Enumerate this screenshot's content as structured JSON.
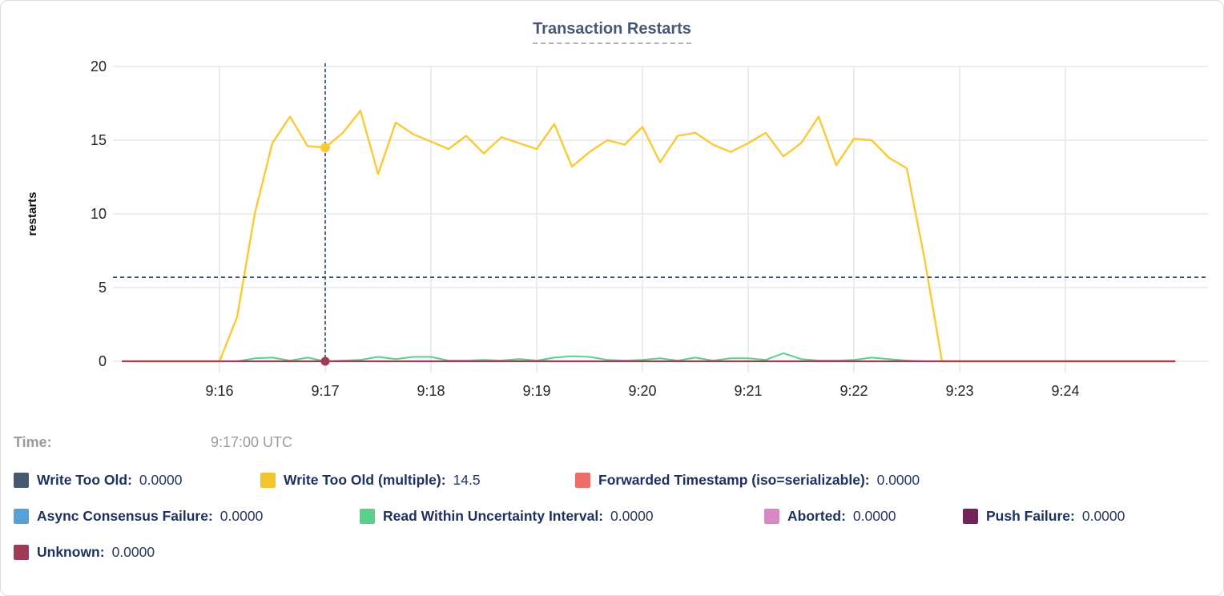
{
  "title": "Transaction Restarts",
  "tooltip": {
    "time_label": "Time:",
    "time_value": "9:17:00 UTC"
  },
  "legend_rows": [
    [
      {
        "label": "Write Too Old:",
        "value": "0.0000",
        "color": "#475872"
      },
      {
        "label": "Write Too Old (multiple):",
        "value": "14.5",
        "color": "#F4C32B"
      },
      {
        "label": "Forwarded Timestamp (iso=serializable):",
        "value": "0.0000",
        "color": "#EC6E67"
      }
    ],
    [
      {
        "label": "Async Consensus Failure:",
        "value": "0.0000",
        "color": "#58A1D8"
      },
      {
        "label": "Read Within Uncertainty Interval:",
        "value": "0.0000",
        "color": "#5AD18B"
      },
      {
        "label": "Aborted:",
        "value": "0.0000",
        "color": "#D688C7"
      },
      {
        "label": "Push Failure:",
        "value": "0.0000",
        "color": "#702459"
      }
    ],
    [
      {
        "label": "Unknown:",
        "value": "0.0000",
        "color": "#A03B55"
      }
    ]
  ],
  "chart_data": {
    "type": "line",
    "title": "Transaction Restarts",
    "xlabel": "",
    "ylabel": "restarts",
    "ylim": [
      0,
      20
    ],
    "y_ticks": [
      0,
      5,
      10,
      15,
      20
    ],
    "grid": true,
    "legend_position": "below",
    "x_unit": "seconds after 9:15:00 UTC",
    "x_range": [
      5,
      602
    ],
    "x_ticks": [
      {
        "label": "9:16",
        "t": 60
      },
      {
        "label": "9:17",
        "t": 120
      },
      {
        "label": "9:18",
        "t": 180
      },
      {
        "label": "9:19",
        "t": 240
      },
      {
        "label": "9:20",
        "t": 300
      },
      {
        "label": "9:21",
        "t": 360
      },
      {
        "label": "9:22",
        "t": 420
      },
      {
        "label": "9:23",
        "t": 480
      },
      {
        "label": "9:24",
        "t": 540
      }
    ],
    "series": [
      {
        "name": "Write Too Old",
        "color": "#475872",
        "width": 1.6,
        "data": [
          [
            5,
            0
          ],
          [
            602,
            0
          ]
        ]
      },
      {
        "name": "Async Consensus Failure",
        "color": "#58A1D8",
        "width": 1.6,
        "data": [
          [
            5,
            0
          ],
          [
            602,
            0
          ]
        ]
      },
      {
        "name": "Aborted",
        "color": "#D688C7",
        "width": 1.6,
        "data": [
          [
            5,
            0
          ],
          [
            602,
            0
          ]
        ]
      },
      {
        "name": "Push Failure",
        "color": "#702459",
        "width": 1.6,
        "data": [
          [
            5,
            0
          ],
          [
            602,
            0
          ]
        ]
      },
      {
        "name": "Forwarded Timestamp (iso=serializable)",
        "color": "#EC6E67",
        "width": 2,
        "data": [
          [
            5,
            0
          ],
          [
            210,
            0
          ],
          [
            220,
            0.05
          ],
          [
            230,
            0.15
          ],
          [
            240,
            0.05
          ],
          [
            250,
            0
          ],
          [
            602,
            0
          ]
        ]
      },
      {
        "name": "Read Within Uncertainty Interval",
        "color": "#5AD18B",
        "width": 2,
        "data": [
          [
            10,
            0
          ],
          [
            70,
            0
          ],
          [
            80,
            0.2
          ],
          [
            90,
            0.25
          ],
          [
            100,
            0.05
          ],
          [
            110,
            0.25
          ],
          [
            120,
            0
          ],
          [
            130,
            0.05
          ],
          [
            140,
            0.1
          ],
          [
            150,
            0.3
          ],
          [
            160,
            0.15
          ],
          [
            170,
            0.3
          ],
          [
            180,
            0.3
          ],
          [
            190,
            0.05
          ],
          [
            200,
            0.05
          ],
          [
            210,
            0.1
          ],
          [
            220,
            0.05
          ],
          [
            230,
            0.15
          ],
          [
            240,
            0.05
          ],
          [
            250,
            0.25
          ],
          [
            260,
            0.35
          ],
          [
            270,
            0.3
          ],
          [
            280,
            0.1
          ],
          [
            290,
            0.05
          ],
          [
            300,
            0.1
          ],
          [
            310,
            0.2
          ],
          [
            320,
            0.05
          ],
          [
            330,
            0.25
          ],
          [
            340,
            0.05
          ],
          [
            350,
            0.2
          ],
          [
            360,
            0.2
          ],
          [
            370,
            0.1
          ],
          [
            380,
            0.55
          ],
          [
            390,
            0.15
          ],
          [
            400,
            0.05
          ],
          [
            410,
            0.05
          ],
          [
            420,
            0.1
          ],
          [
            430,
            0.25
          ],
          [
            440,
            0.15
          ],
          [
            450,
            0.05
          ],
          [
            460,
            0
          ],
          [
            602,
            0
          ]
        ]
      },
      {
        "name": "Write Too Old (multiple)",
        "color": "#FBC935",
        "width": 2.4,
        "data": [
          [
            10,
            0
          ],
          [
            60,
            0
          ],
          [
            70,
            3
          ],
          [
            80,
            10
          ],
          [
            90,
            14.8
          ],
          [
            100,
            16.6
          ],
          [
            110,
            14.6
          ],
          [
            120,
            14.5
          ],
          [
            130,
            15.5
          ],
          [
            140,
            17
          ],
          [
            150,
            12.7
          ],
          [
            160,
            16.2
          ],
          [
            170,
            15.4
          ],
          [
            180,
            14.9
          ],
          [
            190,
            14.4
          ],
          [
            200,
            15.3
          ],
          [
            210,
            14.1
          ],
          [
            220,
            15.2
          ],
          [
            230,
            14.8
          ],
          [
            240,
            14.4
          ],
          [
            250,
            16.1
          ],
          [
            260,
            13.2
          ],
          [
            270,
            14.2
          ],
          [
            280,
            15
          ],
          [
            290,
            14.7
          ],
          [
            300,
            15.9
          ],
          [
            310,
            13.5
          ],
          [
            320,
            15.3
          ],
          [
            330,
            15.5
          ],
          [
            340,
            14.7
          ],
          [
            350,
            14.2
          ],
          [
            360,
            14.8
          ],
          [
            370,
            15.5
          ],
          [
            380,
            13.9
          ],
          [
            390,
            14.8
          ],
          [
            400,
            16.6
          ],
          [
            410,
            13.3
          ],
          [
            420,
            15.1
          ],
          [
            430,
            15
          ],
          [
            440,
            13.8
          ],
          [
            450,
            13.1
          ],
          [
            460,
            7
          ],
          [
            470,
            0
          ],
          [
            602,
            0
          ]
        ]
      },
      {
        "name": "Unknown",
        "color": "#A03B55",
        "width": 2.2,
        "data": [
          [
            5,
            0
          ],
          [
            602,
            0
          ]
        ]
      }
    ],
    "crosshair": {
      "t": 120,
      "time_label": "9:17:00 UTC",
      "h_line_value": 5.7,
      "color": "#35506a",
      "points": [
        {
          "series": "Write Too Old (multiple)",
          "color": "#FBC935",
          "t": 120,
          "value": 14.5,
          "radius": 6
        },
        {
          "series": "Unknown",
          "color": "#A03B55",
          "t": 120,
          "value": 0,
          "radius": 5.5
        }
      ]
    }
  }
}
